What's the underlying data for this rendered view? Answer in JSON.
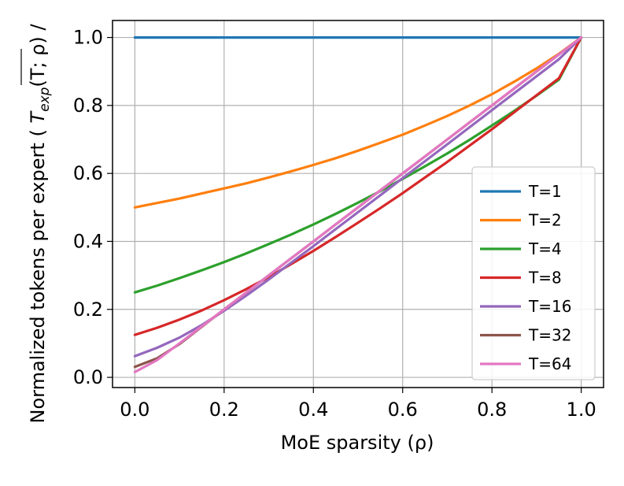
{
  "chart_data": {
    "type": "line",
    "title": "",
    "xlabel": "MoE sparsity (ρ)",
    "ylabel": "Normalized tokens per expert ( T_exp(T; ρ) / ",
    "ylabel_prefix": "Normalized tokens per expert ( ",
    "ylabel_T": "T",
    "ylabel_sub": "exp",
    "ylabel_suffix": "(T; ρ) /",
    "xlim": [
      -0.05,
      1.05
    ],
    "ylim": [
      -0.03,
      1.05
    ],
    "xticks": [
      0.0,
      0.2,
      0.4,
      0.6,
      0.8,
      1.0
    ],
    "xtick_labels": [
      "0.0",
      "0.2",
      "0.4",
      "0.6",
      "0.8",
      "1.0"
    ],
    "yticks": [
      0.0,
      0.2,
      0.4,
      0.6,
      0.8,
      1.0
    ],
    "ytick_labels": [
      "0.0",
      "0.2",
      "0.4",
      "0.6",
      "0.8",
      "1.0"
    ],
    "grid": true,
    "legend_position": "lower-right",
    "x": [
      0.0,
      0.05,
      0.1,
      0.15,
      0.2,
      0.25,
      0.3,
      0.35,
      0.4,
      0.45,
      0.5,
      0.55,
      0.6,
      0.65,
      0.7,
      0.75,
      0.8,
      0.85,
      0.9,
      0.95,
      1.0
    ],
    "series": [
      {
        "name": "T=1",
        "color": "#1f77b4",
        "values": [
          1.0,
          1.0,
          1.0,
          1.0,
          1.0,
          1.0,
          1.0,
          1.0,
          1.0,
          1.0,
          1.0,
          1.0,
          1.0,
          1.0,
          1.0,
          1.0,
          1.0,
          1.0,
          1.0,
          1.0,
          1.0
        ]
      },
      {
        "name": "T=2",
        "color": "#ff7f0e",
        "values": [
          0.5,
          0.513,
          0.526,
          0.541,
          0.556,
          0.571,
          0.588,
          0.606,
          0.625,
          0.645,
          0.667,
          0.69,
          0.714,
          0.741,
          0.769,
          0.8,
          0.833,
          0.87,
          0.909,
          0.952,
          1.0
        ]
      },
      {
        "name": "T=4",
        "color": "#2ca02c",
        "values": [
          0.25,
          0.27,
          0.292,
          0.315,
          0.339,
          0.365,
          0.392,
          0.42,
          0.45,
          0.481,
          0.514,
          0.548,
          0.584,
          0.621,
          0.659,
          0.699,
          0.741,
          0.784,
          0.829,
          0.876,
          1.0
        ]
      },
      {
        "name": "T=8",
        "color": "#d62728",
        "values": [
          0.125,
          0.146,
          0.17,
          0.197,
          0.227,
          0.26,
          0.295,
          0.333,
          0.372,
          0.413,
          0.455,
          0.498,
          0.542,
          0.588,
          0.634,
          0.682,
          0.73,
          0.78,
          0.83,
          0.88,
          1.0
        ]
      },
      {
        "name": "T=16",
        "color": "#9467bd",
        "values": [
          0.0625,
          0.087,
          0.117,
          0.154,
          0.196,
          0.241,
          0.288,
          0.337,
          0.386,
          0.436,
          0.486,
          0.536,
          0.586,
          0.636,
          0.686,
          0.736,
          0.786,
          0.836,
          0.886,
          0.936,
          1.0
        ]
      },
      {
        "name": "T=32",
        "color": "#8c564b",
        "values": [
          0.031,
          0.056,
          0.098,
          0.149,
          0.2,
          0.25,
          0.3,
          0.35,
          0.4,
          0.45,
          0.5,
          0.55,
          0.6,
          0.65,
          0.7,
          0.75,
          0.8,
          0.85,
          0.9,
          0.95,
          1.0
        ]
      },
      {
        "name": "T=64",
        "color": "#e377c2",
        "values": [
          0.0156,
          0.051,
          0.1,
          0.15,
          0.2,
          0.25,
          0.3,
          0.35,
          0.4,
          0.45,
          0.5,
          0.55,
          0.6,
          0.65,
          0.7,
          0.75,
          0.8,
          0.85,
          0.9,
          0.95,
          1.0
        ]
      }
    ]
  }
}
